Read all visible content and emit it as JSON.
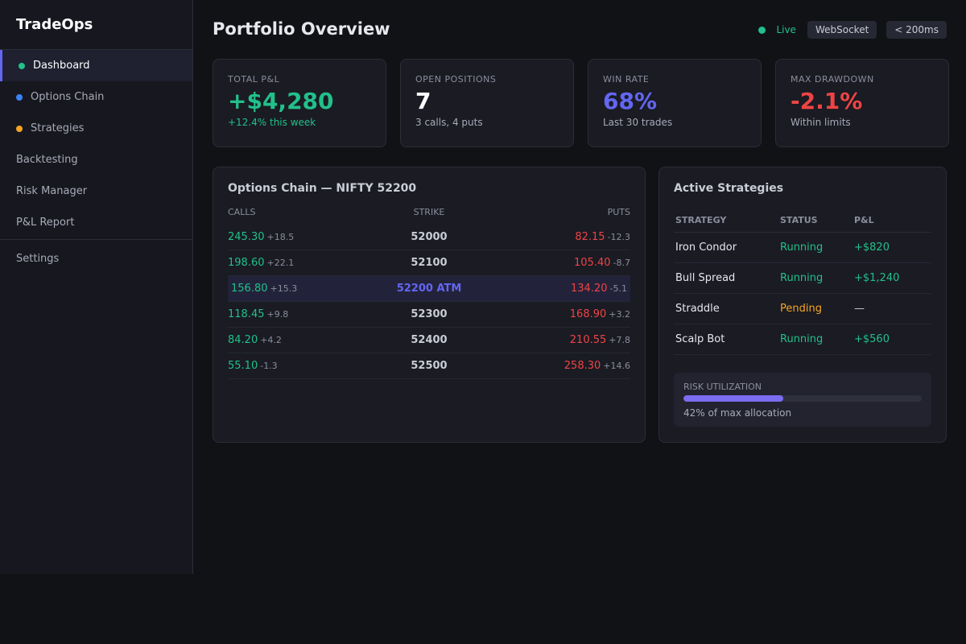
{
  "app": {
    "name": "TradeOps"
  },
  "sidebar": {
    "items": [
      {
        "label": "Dashboard",
        "dot": "#22c08a",
        "active": true
      },
      {
        "label": "Options Chain",
        "dot": "#3b82f6"
      },
      {
        "label": "Strategies",
        "dot": "#f5a524"
      },
      {
        "label": "Backtesting"
      },
      {
        "label": "Risk Manager"
      },
      {
        "label": "P&L Report"
      }
    ],
    "settings_label": "Settings"
  },
  "header": {
    "title": "Portfolio Overview",
    "live_label": "Live",
    "connection": "WebSocket",
    "latency": "< 200ms"
  },
  "stats": [
    {
      "label": "TOTAL P&L",
      "value": "+$4,280",
      "sub": "+12.4% this week",
      "color": "#22c08a",
      "sub_color": "#22c08a"
    },
    {
      "label": "OPEN POSITIONS",
      "value": "7",
      "sub": "3 calls, 4 puts",
      "color": "#ffffff"
    },
    {
      "label": "WIN RATE",
      "value": "68%",
      "sub": "Last 30 trades",
      "color": "#6366f1"
    },
    {
      "label": "MAX DRAWDOWN",
      "value": "-2.1%",
      "sub": "Within limits",
      "color": "#ef4444"
    }
  ],
  "options_chain": {
    "title": "Options Chain — NIFTY 52200",
    "columns": [
      "CALLS",
      "STRIKE",
      "PUTS"
    ],
    "rows": [
      {
        "call": "245.30",
        "call_chg": "+18.5",
        "strike": "52000",
        "put": "82.15",
        "put_chg": "-12.3"
      },
      {
        "call": "198.60",
        "call_chg": "+22.1",
        "strike": "52100",
        "put": "105.40",
        "put_chg": "-8.7"
      },
      {
        "call": "156.80",
        "call_chg": "+15.3",
        "strike": "52200 ATM",
        "put": "134.20",
        "put_chg": "-5.1",
        "atm": true
      },
      {
        "call": "118.45",
        "call_chg": "+9.8",
        "strike": "52300",
        "put": "168.90",
        "put_chg": "+3.2"
      },
      {
        "call": "84.20",
        "call_chg": "+4.2",
        "strike": "52400",
        "put": "210.55",
        "put_chg": "+7.8"
      },
      {
        "call": "55.10",
        "call_chg": "-1.3",
        "strike": "52500",
        "put": "258.30",
        "put_chg": "+14.6"
      }
    ]
  },
  "strategies": {
    "title": "Active Strategies",
    "columns": [
      "STRATEGY",
      "STATUS",
      "P&L"
    ],
    "rows": [
      {
        "name": "Iron Condor",
        "status": "Running",
        "pnl": "+$820"
      },
      {
        "name": "Bull Spread",
        "status": "Running",
        "pnl": "+$1,240"
      },
      {
        "name": "Straddle",
        "status": "Pending",
        "pnl": "—"
      },
      {
        "name": "Scalp Bot",
        "status": "Running",
        "pnl": "+$560"
      }
    ],
    "risk": {
      "label": "RISK UTILIZATION",
      "percent": 42,
      "text": "42% of max allocation"
    }
  },
  "colors": {
    "green": "#22c08a",
    "red": "#ef4444",
    "amber": "#f5a524",
    "accent": "#6366f1"
  }
}
